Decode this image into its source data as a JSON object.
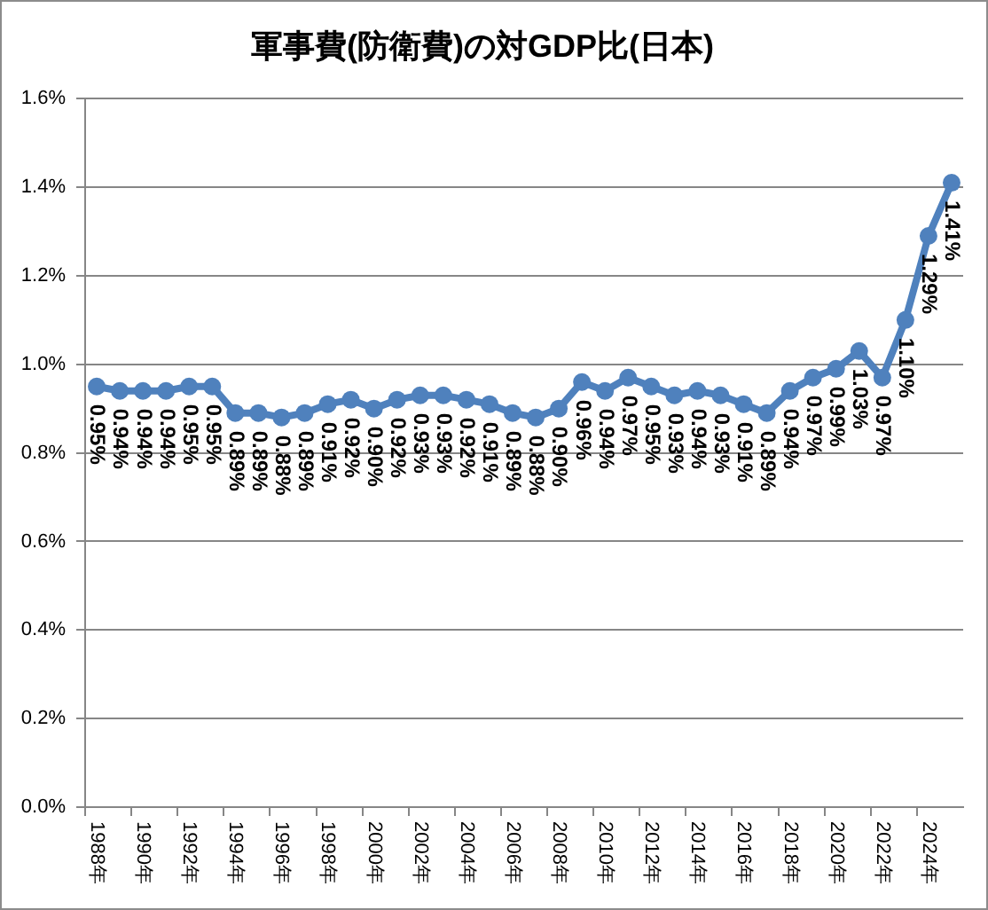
{
  "chart_data": {
    "type": "line",
    "title": "軍事費(防衛費)の対GDP比(日本)",
    "categories": [
      "1988年",
      null,
      "1990年",
      null,
      "1992年",
      null,
      "1994年",
      null,
      "1996年",
      null,
      "1998年",
      null,
      "2000年",
      null,
      "2002年",
      null,
      "2004年",
      null,
      "2006年",
      null,
      "2008年",
      null,
      "2010年",
      null,
      "2012年",
      null,
      "2014年",
      null,
      "2016年",
      null,
      "2018年",
      null,
      "2020年",
      null,
      "2022年",
      null,
      "2024年",
      null
    ],
    "values": [
      0.95,
      0.94,
      0.94,
      0.94,
      0.95,
      0.95,
      0.89,
      0.89,
      0.88,
      0.89,
      0.91,
      0.92,
      0.9,
      0.92,
      0.93,
      0.93,
      0.92,
      0.91,
      0.89,
      0.88,
      0.9,
      0.96,
      0.94,
      0.97,
      0.95,
      0.93,
      0.94,
      0.93,
      0.91,
      0.89,
      0.94,
      0.97,
      0.99,
      1.03,
      0.97,
      1.1,
      1.29,
      1.41
    ],
    "value_labels": [
      "0.95%",
      "0.94%",
      "0.94%",
      "0.94%",
      "0.95%",
      "0.95%",
      "0.89%",
      "0.89%",
      "0.88%",
      "0.89%",
      "0.91%",
      "0.92%",
      "0.90%",
      "0.92%",
      "0.93%",
      "0.93%",
      "0.92%",
      "0.91%",
      "0.89%",
      "0.88%",
      "0.90%",
      "0.96%",
      "0.94%",
      "0.97%",
      "0.95%",
      "0.93%",
      "0.94%",
      "0.93%",
      "0.91%",
      "0.89%",
      "0.94%",
      "0.97%",
      "0.99%",
      "1.03%",
      "0.97%",
      "1.10%",
      "1.29%",
      "1.41%"
    ],
    "color": "#4f81bd",
    "ylim": [
      0,
      1.6
    ],
    "yticks": [
      {
        "value": 0,
        "label": "0.0%"
      },
      {
        "value": 0.2,
        "label": "0.2%"
      },
      {
        "value": 0.4,
        "label": "0.4%"
      },
      {
        "value": 0.6,
        "label": "0.6%"
      },
      {
        "value": 0.8,
        "label": "0.8%"
      },
      {
        "value": 1.0,
        "label": "1.0%"
      },
      {
        "value": 1.2,
        "label": "1.2%"
      },
      {
        "value": 1.4,
        "label": "1.4%"
      },
      {
        "value": 1.6,
        "label": "1.6%"
      }
    ],
    "grid": "y",
    "marker": "circle",
    "line_style": "solid"
  }
}
